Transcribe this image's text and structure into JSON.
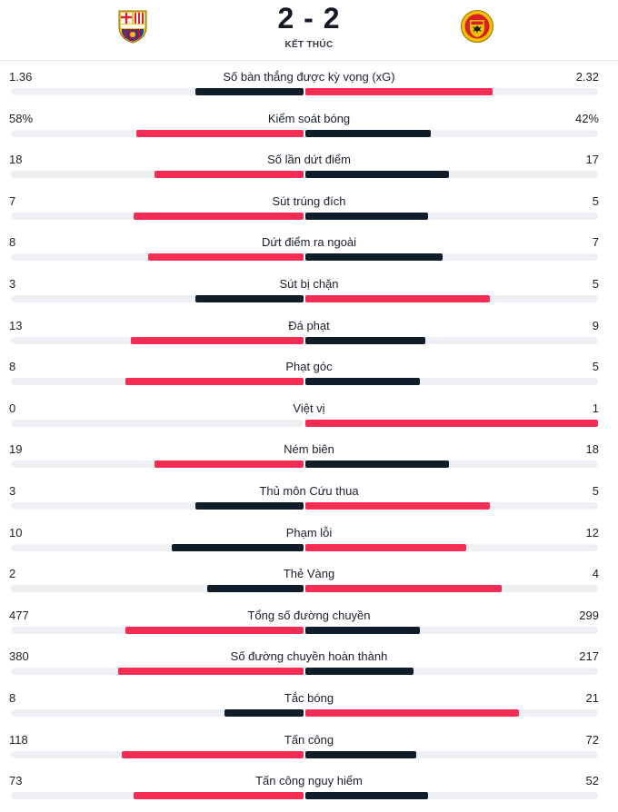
{
  "match": {
    "score": "2 - 2",
    "status": "KẾT THÚC",
    "home_crest_icon": "fc-barcelona-crest-icon",
    "away_crest_icon": "manchester-united-crest-icon"
  },
  "colors": {
    "red": "#f52d55",
    "dark": "#101e2c",
    "track": "#eef0f3"
  },
  "stats": [
    {
      "label": "Số bàn thắng được kỳ vọng (xG)",
      "home": "1.36",
      "away": "2.32",
      "home_frac": 0.37,
      "away_frac": 0.64
    },
    {
      "label": "Kiểm soát bóng",
      "home": "58%",
      "away": "42%",
      "home_frac": 0.57,
      "away_frac": 0.43
    },
    {
      "label": "Số lần dứt điểm",
      "home": "18",
      "away": "17",
      "home_frac": 0.51,
      "away_frac": 0.49
    },
    {
      "label": "Sút trúng đích",
      "home": "7",
      "away": "5",
      "home_frac": 0.58,
      "away_frac": 0.42
    },
    {
      "label": "Dứt điểm ra ngoài",
      "home": "8",
      "away": "7",
      "home_frac": 0.53,
      "away_frac": 0.47
    },
    {
      "label": "Sút bị chặn",
      "home": "3",
      "away": "5",
      "home_frac": 0.37,
      "away_frac": 0.63
    },
    {
      "label": "Đá phạt",
      "home": "13",
      "away": "9",
      "home_frac": 0.59,
      "away_frac": 0.41
    },
    {
      "label": "Phạt góc",
      "home": "8",
      "away": "5",
      "home_frac": 0.61,
      "away_frac": 0.39
    },
    {
      "label": "Việt vị",
      "home": "0",
      "away": "1",
      "home_frac": 0.0,
      "away_frac": 1.0
    },
    {
      "label": "Ném biên",
      "home": "19",
      "away": "18",
      "home_frac": 0.51,
      "away_frac": 0.49
    },
    {
      "label": "Thủ môn Cứu thua",
      "home": "3",
      "away": "5",
      "home_frac": 0.37,
      "away_frac": 0.63
    },
    {
      "label": "Phạm lỗi",
      "home": "10",
      "away": "12",
      "home_frac": 0.45,
      "away_frac": 0.55
    },
    {
      "label": "Thẻ Vàng",
      "home": "2",
      "away": "4",
      "home_frac": 0.33,
      "away_frac": 0.67
    },
    {
      "label": "Tổng số đường chuyền",
      "home": "477",
      "away": "299",
      "home_frac": 0.61,
      "away_frac": 0.39
    },
    {
      "label": "Số đường chuyền hoàn thành",
      "home": "380",
      "away": "217",
      "home_frac": 0.635,
      "away_frac": 0.37
    },
    {
      "label": "Tắc bóng",
      "home": "8",
      "away": "21",
      "home_frac": 0.27,
      "away_frac": 0.73
    },
    {
      "label": "Tấn công",
      "home": "118",
      "away": "72",
      "home_frac": 0.62,
      "away_frac": 0.38
    },
    {
      "label": "Tấn công nguy hiểm",
      "home": "73",
      "away": "52",
      "home_frac": 0.58,
      "away_frac": 0.42
    }
  ]
}
